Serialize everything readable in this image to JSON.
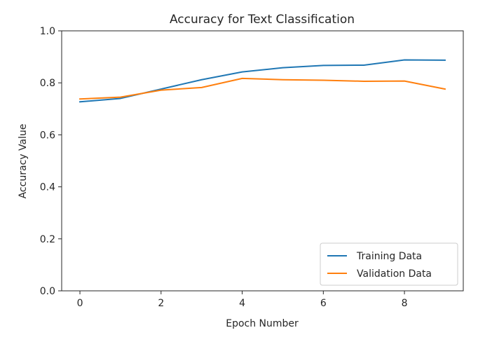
{
  "chart_data": {
    "type": "line",
    "title": "Accuracy for Text Classification",
    "xlabel": "Epoch Number",
    "ylabel": "Accuracy Value",
    "x": [
      0,
      1,
      2,
      3,
      4,
      5,
      6,
      7,
      8,
      9
    ],
    "xlim": [
      -0.45,
      9.45
    ],
    "ylim": [
      0.0,
      1.0
    ],
    "xticks": [
      "0",
      "2",
      "4",
      "6",
      "8"
    ],
    "yticks": [
      "0.0",
      "0.2",
      "0.4",
      "0.6",
      "0.8",
      "1.0"
    ],
    "grid": false,
    "legend_position": "lower-right",
    "series": [
      {
        "name": "Training Data",
        "color": "#1f77b4",
        "values": [
          0.727,
          0.74,
          0.776,
          0.812,
          0.842,
          0.858,
          0.867,
          0.868,
          0.888,
          0.887
        ]
      },
      {
        "name": "Validation Data",
        "color": "#ff7f0e",
        "values": [
          0.738,
          0.745,
          0.772,
          0.782,
          0.817,
          0.812,
          0.81,
          0.806,
          0.807,
          0.776
        ]
      }
    ]
  }
}
